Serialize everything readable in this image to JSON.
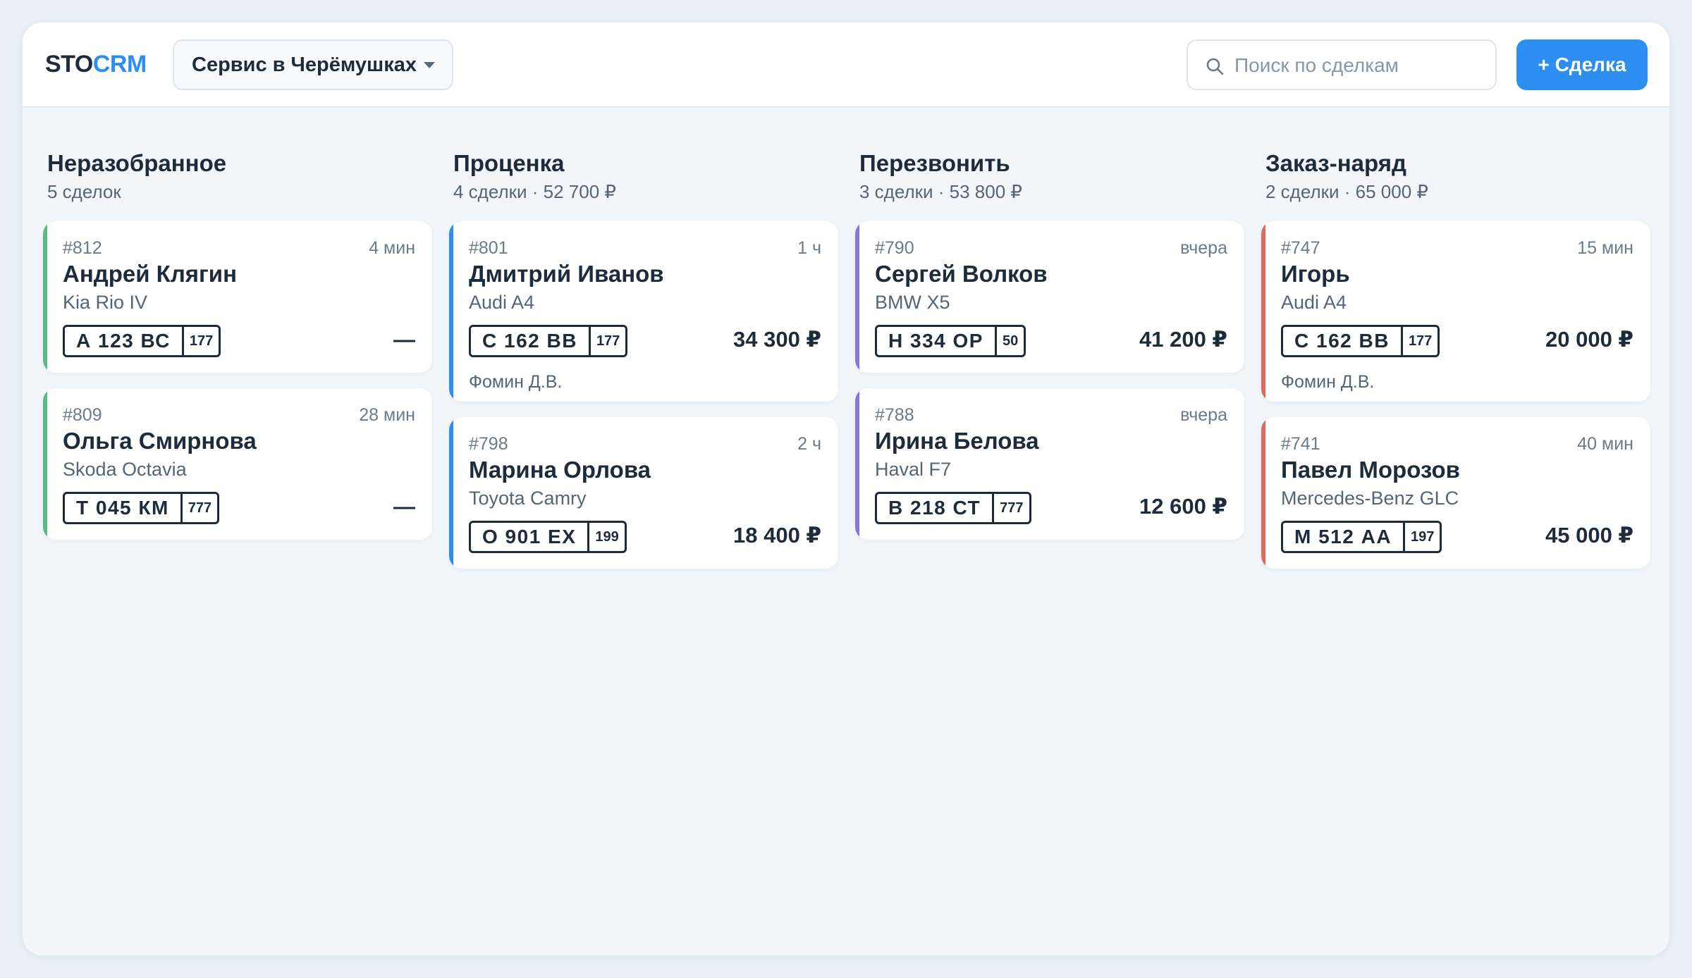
{
  "app": {
    "logo_dark": "STO",
    "logo_blue": "CRM"
  },
  "header": {
    "workspace": "Сервис в Черёмушках",
    "search_placeholder": "Поиск по сделкам",
    "new_deal_label": "+ Сделка"
  },
  "colors": {
    "accent": "#2d8ef2",
    "green": "#5cb88a",
    "blue": "#2d8ef2",
    "purple": "#8a76d8",
    "red": "#de6a5e"
  },
  "columns": [
    {
      "title": "Неразобранное",
      "subtitle": "5 сделок",
      "cards": [
        {
          "id": "#812",
          "time": "4 мин",
          "name": "Андрей Клягин",
          "car": "Kia Rio IV",
          "plate": "А 123 ВС",
          "region": "177",
          "amount": "—",
          "manager": ""
        },
        {
          "id": "#809",
          "time": "28 мин",
          "name": "Ольга Смирнова",
          "car": "Skoda Octavia",
          "plate": "Т 045 КМ",
          "region": "777",
          "amount": "—",
          "manager": ""
        }
      ]
    },
    {
      "title": "Проценка",
      "subtitle": "4 сделки · 52 700 ₽",
      "cards": [
        {
          "id": "#801",
          "time": "1 ч",
          "name": "Дмитрий Иванов",
          "car": "Audi A4",
          "plate": "С 162 ВВ",
          "region": "177",
          "amount": "34 300 ₽",
          "manager": "Фомин Д.В."
        },
        {
          "id": "#798",
          "time": "2 ч",
          "name": "Марина Орлова",
          "car": "Toyota Camry",
          "plate": "О 901 ЕХ",
          "region": "199",
          "amount": "18 400 ₽",
          "manager": ""
        }
      ]
    },
    {
      "title": "Перезвонить",
      "subtitle": "3 сделки · 53 800 ₽",
      "cards": [
        {
          "id": "#790",
          "time": "вчера",
          "name": "Сергей Волков",
          "car": "BMW X5",
          "plate": "Н 334 ОР",
          "region": "50",
          "amount": "41 200 ₽",
          "manager": ""
        },
        {
          "id": "#788",
          "time": "вчера",
          "name": "Ирина Белова",
          "car": "Haval F7",
          "plate": "В 218 СТ",
          "region": "777",
          "amount": "12 600 ₽",
          "manager": ""
        }
      ]
    },
    {
      "title": "Заказ-наряд",
      "subtitle": "2 сделки · 65 000 ₽",
      "cards": [
        {
          "id": "#747",
          "time": "15 мин",
          "name": "Игорь",
          "car": "Audi A4",
          "plate": "С 162 ВВ",
          "region": "177",
          "amount": "20 000 ₽",
          "manager": "Фомин Д.В."
        },
        {
          "id": "#741",
          "time": "40 мин",
          "name": "Павел Морозов",
          "car": "Mercedes-Benz GLC",
          "plate": "М 512 АА",
          "region": "197",
          "amount": "45 000 ₽",
          "manager": ""
        }
      ]
    }
  ]
}
